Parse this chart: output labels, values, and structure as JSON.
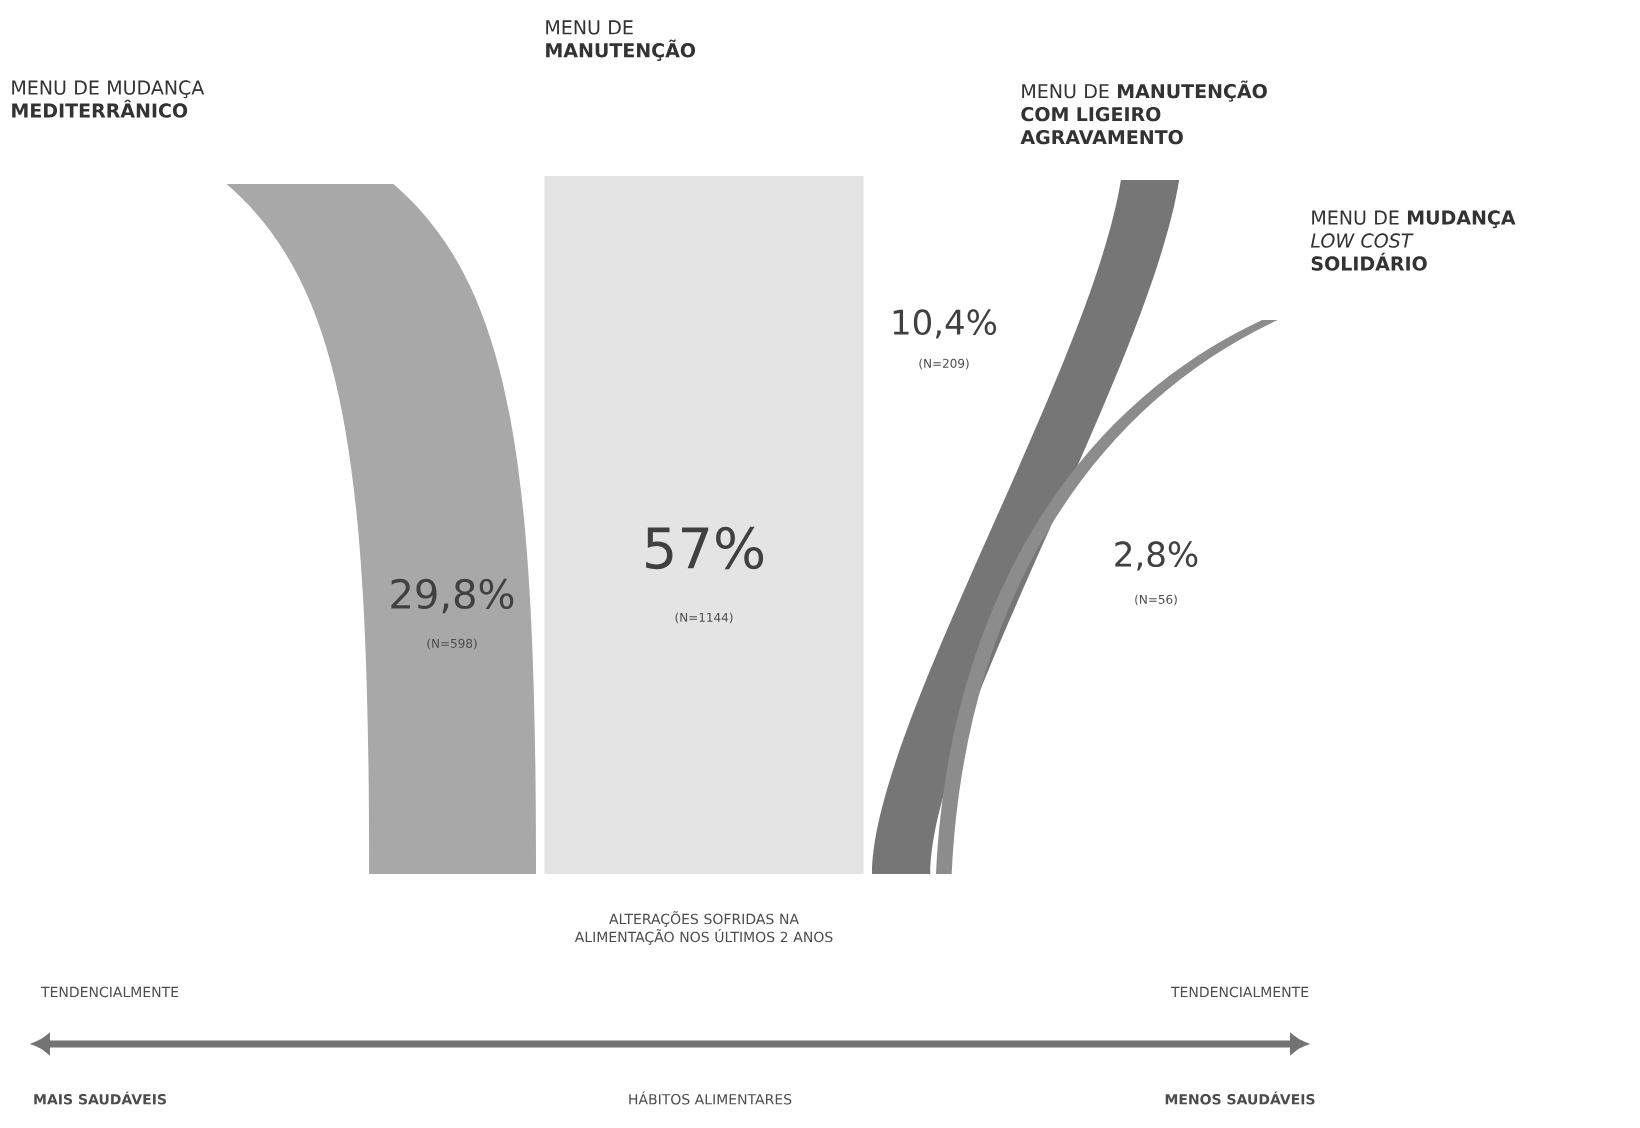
{
  "chart_data": {
    "type": "other",
    "categories": [
      "MENU DE MUDANÇA **MEDITERRÂNICO**",
      "MENU DE **MANUTENÇÃO**",
      "MENU DE **MANUTENÇÃO COM LIGEIRO AGRAVAMENTO**",
      "MENU DE **MUDANÇA** *LOW COST* **SOLIDÁRIO**"
    ],
    "values": [
      29.8,
      57,
      10.4,
      2.8
    ],
    "value_labels": [
      "29,8%",
      "57%",
      "10,4%",
      "2,8%"
    ],
    "colors": [
      "#a8a8a8",
      "#e4e4e4",
      "#767676",
      "#8c8c8c"
    ],
    "annotations": [
      "(N=598)",
      "(N=1144)",
      "(N=209)",
      "(N=56)",
      "ALTERAÇÕES SOFRIDAS NA ALIMENTAÇÃO NOS ÚLTIMOS 2 ANOS",
      "TENDENCIALMENTE",
      "TENDENCIALMENTE",
      "MAIS SAUDÁVEIS",
      "HÁBITOS ALIMENTARES",
      "MENOS SAUDÁVEIS"
    ]
  }
}
